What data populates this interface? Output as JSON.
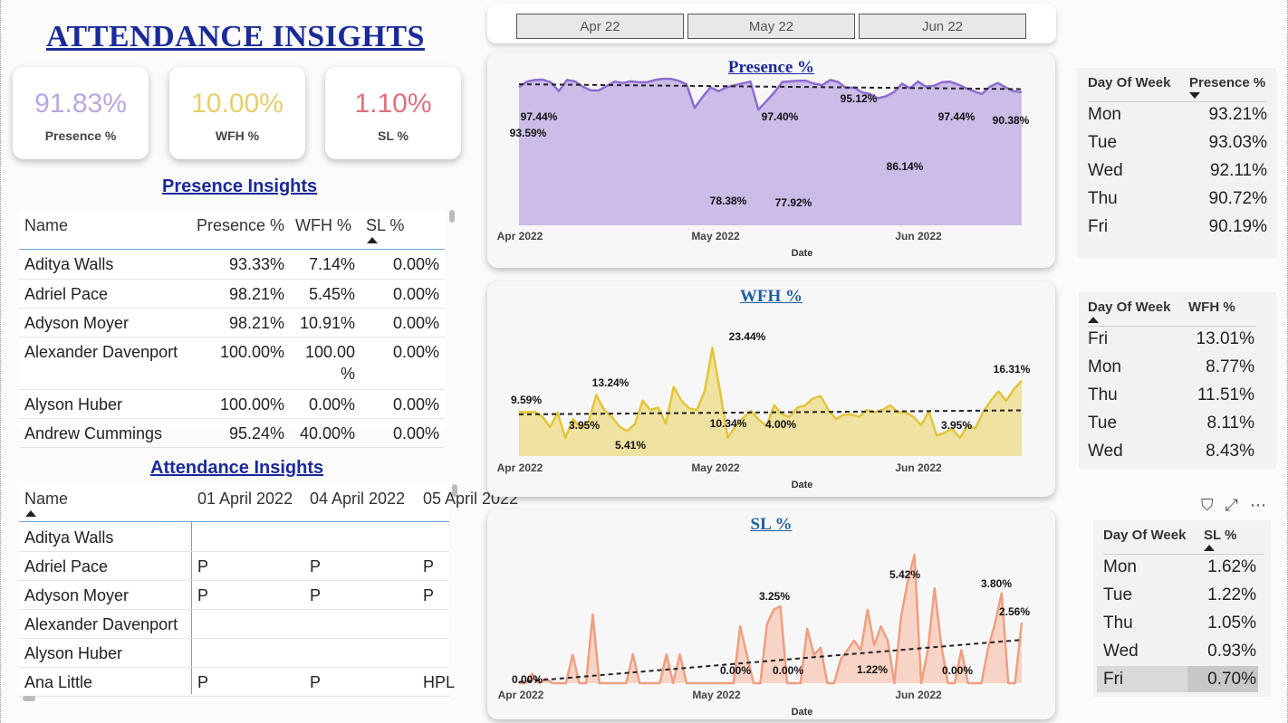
{
  "title": "ATTENDANCE INSIGHTS",
  "kpis": [
    {
      "value": "91.83%",
      "label": "Presence %",
      "color": "#b9a7e0"
    },
    {
      "value": "10.00%",
      "label": "WFH %",
      "color": "#e6cf6a"
    },
    {
      "value": "1.10%",
      "label": "SL %",
      "color": "#e0707c"
    }
  ],
  "presence_insights": {
    "title": "Presence Insights",
    "headers": [
      "Name",
      "Presence %",
      "WFH %",
      "SL %"
    ],
    "rows": [
      [
        "Aditya Walls",
        "93.33%",
        "7.14%",
        "0.00%"
      ],
      [
        "Adriel Pace",
        "98.21%",
        "5.45%",
        "0.00%"
      ],
      [
        "Adyson Moyer",
        "98.21%",
        "10.91%",
        "0.00%"
      ],
      [
        "Alexander Davenport",
        "100.00%",
        "100.00\n%",
        "0.00%"
      ],
      [
        "Alyson Huber",
        "100.00%",
        "0.00%",
        "0.00%"
      ],
      [
        "Andrew Cummings",
        "95.24%",
        "40.00%",
        "0.00%"
      ]
    ]
  },
  "attendance_insights": {
    "title": "Attendance Insights",
    "headers": [
      "Name",
      "01 April 2022",
      "04 April 2022",
      "05 April 2022"
    ],
    "rows": [
      [
        "Aditya Walls",
        "",
        "",
        ""
      ],
      [
        "Adriel Pace",
        "P",
        "P",
        "P"
      ],
      [
        "Adyson Moyer",
        "P",
        "P",
        "P"
      ],
      [
        "Alexander Davenport",
        "",
        "",
        ""
      ],
      [
        "Alyson Huber",
        "",
        "",
        ""
      ],
      [
        "Ana Little",
        "P",
        "P",
        "HPL"
      ]
    ]
  },
  "slicer": {
    "options": [
      "Apr 22",
      "May 22",
      "Jun 22"
    ]
  },
  "charts": [
    {
      "title": "Presence %",
      "title_color": "#1a2a9a",
      "line_color": "#8d6cd1",
      "fill_color": "#cbbce8",
      "xlabel": "Date",
      "xticks": [
        "Apr 2022",
        "May 2022",
        "Jun 2022"
      ],
      "ylim": [
        0,
        100
      ],
      "labels": [
        "97.44%",
        "93.59%",
        "97.40%",
        "95.12%",
        "78.38%",
        "77.92%",
        "86.14%",
        "97.44%",
        "90.38%"
      ]
    },
    {
      "title": "WFH %",
      "title_color": "#1f5fa0",
      "line_color": "#e3c53a",
      "fill_color": "#f0e2a0",
      "xlabel": "Date",
      "xticks": [
        "Apr 2022",
        "May 2022",
        "Jun 2022"
      ],
      "ylim": [
        0,
        30
      ],
      "labels": [
        "9.59%",
        "3.95%",
        "13.24%",
        "5.41%",
        "23.44%",
        "10.34%",
        "4.00%",
        "3.95%",
        "16.31%"
      ]
    },
    {
      "title": "SL %",
      "title_color": "#1f5fa0",
      "line_color": "#ee9f80",
      "fill_color": "#f8d4c6",
      "xlabel": "Date",
      "xticks": [
        "Apr 2022",
        "May 2022",
        "Jun 2022"
      ],
      "ylim": [
        0,
        6
      ],
      "labels": [
        "0.00%",
        "3.25%",
        "0.00%",
        "0.00%",
        "5.42%",
        "1.22%",
        "0.00%",
        "3.80%",
        "2.56%"
      ]
    }
  ],
  "chart_data": [
    {
      "type": "area",
      "title": "Presence %",
      "xlabel": "Date",
      "x": [
        "2022-04-01",
        "2022-04-04",
        "2022-04-05",
        "2022-04-06",
        "2022-04-07",
        "2022-04-08",
        "2022-04-11",
        "2022-04-12",
        "2022-04-13",
        "2022-04-14",
        "2022-04-18",
        "2022-04-19",
        "2022-04-20",
        "2022-04-21",
        "2022-04-22",
        "2022-04-25",
        "2022-04-26",
        "2022-04-27",
        "2022-04-28",
        "2022-04-29",
        "2022-05-02",
        "2022-05-03",
        "2022-05-04",
        "2022-05-05",
        "2022-05-06",
        "2022-05-09",
        "2022-05-10",
        "2022-05-11",
        "2022-05-12",
        "2022-05-13",
        "2022-05-16",
        "2022-05-17",
        "2022-05-18",
        "2022-05-19",
        "2022-05-20",
        "2022-05-23",
        "2022-05-24",
        "2022-05-25",
        "2022-05-26",
        "2022-05-27",
        "2022-05-30",
        "2022-05-31",
        "2022-06-01",
        "2022-06-02",
        "2022-06-03",
        "2022-06-06",
        "2022-06-07",
        "2022-06-08",
        "2022-06-09",
        "2022-06-10",
        "2022-06-13",
        "2022-06-14",
        "2022-06-15",
        "2022-06-16",
        "2022-06-17",
        "2022-06-20",
        "2022-06-21",
        "2022-06-22",
        "2022-06-23",
        "2022-06-24",
        "2022-06-27",
        "2022-06-28",
        "2022-06-29",
        "2022-06-30"
      ],
      "series": [
        {
          "values": [
            93.59,
            97.44,
            98.5,
            98.8,
            97.0,
            91.0,
            98.5,
            97.6,
            94.0,
            91.5,
            91.5,
            94.5,
            97.5,
            96.5,
            97.6,
            97.0,
            97.0,
            98.5,
            99.3,
            99.3,
            98.0,
            95.6,
            79.5,
            87.0,
            93.5,
            91.0,
            93.5,
            95.0,
            96.2,
            97.4,
            78.4,
            84.2,
            90.2,
            97.2,
            97.6,
            98.0,
            98.0,
            96.0,
            95.12,
            98.5,
            97.2,
            93.0,
            93.4,
            90.1,
            89.0,
            86.14,
            87.5,
            90.3,
            96.0,
            93.0,
            97.5,
            94.0,
            94.6,
            97.0,
            97.44,
            95.5,
            93.0,
            91.0,
            89.0,
            94.0,
            96.5,
            93.5,
            91.0,
            90.38
          ]
        }
      ],
      "trendline": true
    },
    {
      "type": "area",
      "title": "WFH %",
      "xlabel": "Date",
      "x_ticks": [
        "Apr 2022",
        "May 2022",
        "Jun 2022"
      ],
      "series": [
        {
          "values": [
            9.59,
            9.5,
            9.6,
            8.6,
            6.3,
            9.4,
            3.95,
            8.0,
            6.0,
            7.5,
            13.24,
            10.0,
            8.5,
            6.4,
            5.41,
            7.0,
            12.0,
            10.0,
            10.5,
            7.0,
            15.0,
            12.0,
            10.34,
            10.0,
            14.0,
            23.44,
            14.0,
            4.0,
            6.5,
            8.3,
            9.8,
            7.9,
            6.5,
            11.0,
            9.0,
            8.5,
            10.5,
            11.0,
            12.5,
            13.0,
            10.0,
            8.0,
            9.0,
            9.0,
            8.5,
            10.0,
            9.5,
            10.0,
            11.0,
            9.5,
            9.5,
            8.5,
            6.7,
            9.7,
            4.5,
            5.0,
            6.0,
            3.95,
            6.5,
            6.0,
            9.5,
            12.0,
            14.0,
            12.0,
            14.5,
            16.31
          ]
        }
      ],
      "trendline": true
    },
    {
      "type": "area",
      "title": "SL %",
      "xlabel": "Date",
      "x_ticks": [
        "Apr 2022",
        "May 2022",
        "Jun 2022"
      ],
      "series": [
        {
          "values": [
            0.0,
            0.0,
            0.4,
            0.0,
            0.2,
            0.0,
            0.0,
            0.0,
            1.2,
            0.0,
            0.0,
            2.9,
            0.0,
            0.0,
            0.0,
            0.0,
            0.0,
            1.22,
            0.0,
            0.0,
            0.0,
            0.0,
            1.22,
            0.0,
            1.22,
            0.0,
            0.0,
            0.0,
            0.0,
            0.0,
            0.0,
            0.0,
            0.0,
            2.4,
            1.2,
            0.0,
            0.0,
            2.5,
            3.1,
            3.25,
            0.0,
            0.0,
            0.0,
            2.3,
            1.2,
            1.5,
            0.0,
            0.0,
            1.0,
            1.4,
            1.8,
            1.4,
            3.1,
            1.6,
            2.4,
            1.8,
            0.0,
            2.8,
            4.3,
            5.42,
            0.0,
            1.4,
            4.0,
            1.6,
            0.0,
            0.0,
            1.4,
            0.0,
            0.0,
            0.0,
            1.5,
            2.5,
            3.8,
            0.0,
            0.0,
            2.56
          ]
        }
      ],
      "trendline": true
    }
  ],
  "dow_tables": [
    {
      "headers": [
        "Day Of Week",
        "Presence %"
      ],
      "rows": [
        [
          "Mon",
          "93.21%"
        ],
        [
          "Tue",
          "93.03%"
        ],
        [
          "Wed",
          "92.11%"
        ],
        [
          "Thu",
          "90.72%"
        ],
        [
          "Fri",
          "90.19%"
        ]
      ]
    },
    {
      "headers": [
        "Day Of Week",
        "WFH %"
      ],
      "rows": [
        [
          "Fri",
          "13.01%"
        ],
        [
          "Mon",
          "8.77%"
        ],
        [
          "Thu",
          "11.51%"
        ],
        [
          "Tue",
          "8.11%"
        ],
        [
          "Wed",
          "8.43%"
        ]
      ]
    },
    {
      "headers": [
        "Day Of Week",
        "SL %"
      ],
      "rows": [
        [
          "Mon",
          "1.62%"
        ],
        [
          "Tue",
          "1.22%"
        ],
        [
          "Thu",
          "1.05%"
        ],
        [
          "Wed",
          "0.93%"
        ],
        [
          "Fri",
          "0.70%"
        ]
      ]
    }
  ]
}
